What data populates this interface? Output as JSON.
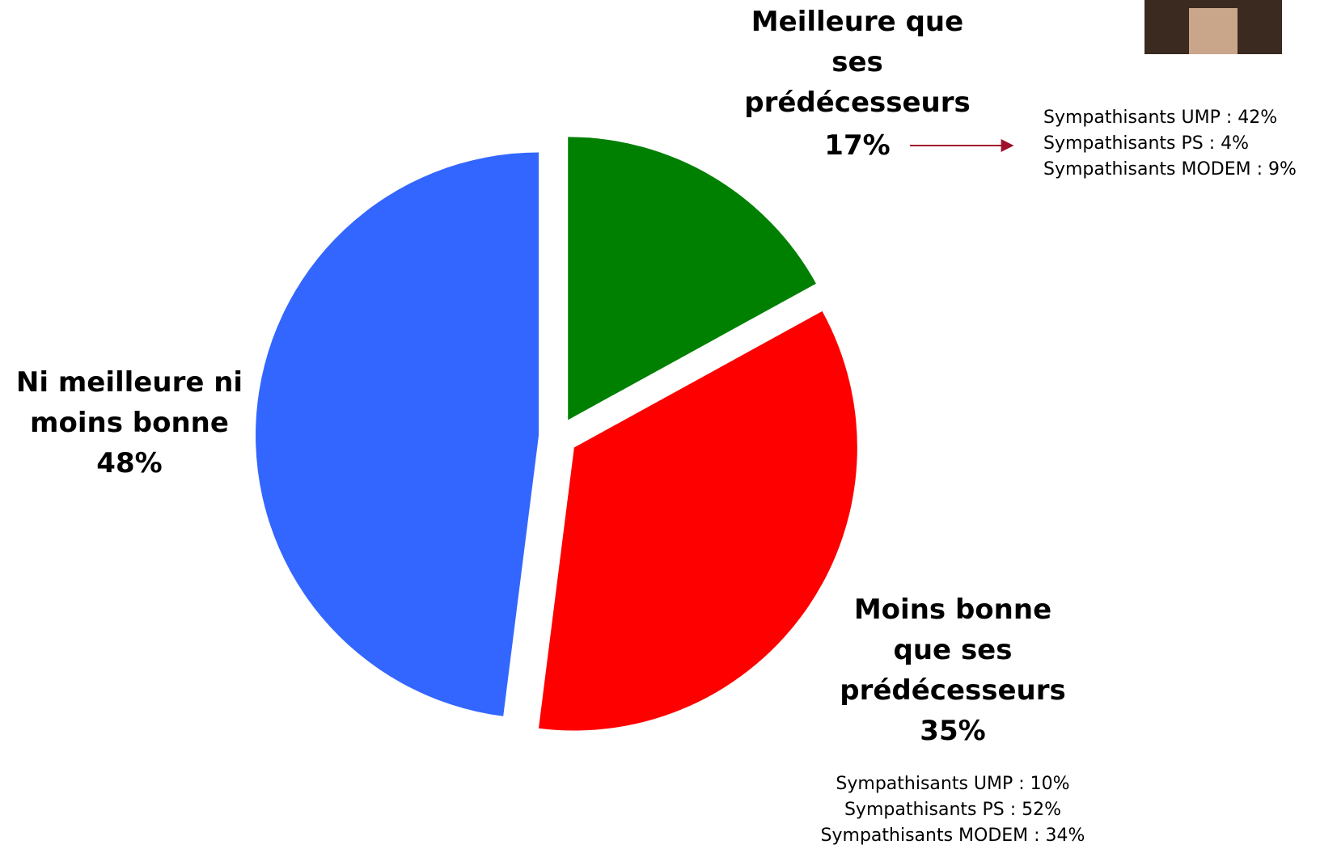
{
  "chart_data": {
    "type": "pie",
    "categories": [
      "Meilleure que ses prédécesseurs",
      "Moins bonne que ses prédécesseurs",
      "Ni meilleure ni moins bonne"
    ],
    "values": [
      17,
      35,
      48
    ],
    "value_labels": [
      "17%",
      "35%",
      "48%"
    ],
    "colors": [
      "#008000",
      "#ff0000",
      "#3366ff"
    ],
    "annotations": [
      [
        "Sympathisants UMP : 42%",
        "Sympathisants PS : 4%",
        "Sympathisants MODEM : 9%"
      ],
      [
        "Sympathisants UMP : 10%",
        "Sympathisants PS : 52%",
        "Sympathisants MODEM : 34%"
      ]
    ]
  }
}
